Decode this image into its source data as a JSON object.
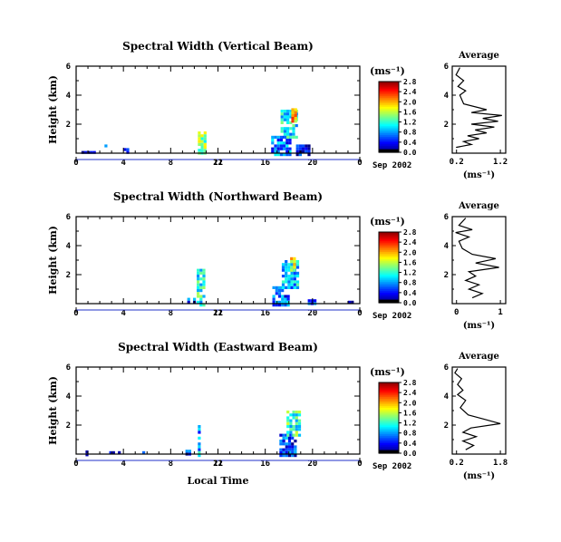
{
  "chart_data": [
    {
      "type": "heatmap",
      "title": "Spectral Width (Vertical Beam)",
      "xlabel": "",
      "ylabel": "Height (km)",
      "xlim": [
        0,
        24
      ],
      "ylim": [
        0,
        6
      ],
      "x_ticks": [
        "0",
        "4",
        "8",
        "12",
        "16",
        "20",
        "0"
      ],
      "y_ticks": [
        "2",
        "4",
        "6"
      ],
      "colorbar": {
        "unit": "(ms⁻¹)",
        "ticks": [
          "0.0",
          "0.4",
          "0.8",
          "1.2",
          "1.6",
          "2.0",
          "2.4",
          "2.8"
        ],
        "max": 2.8
      },
      "date_label": "21",
      "date_right": "Sep 2002",
      "echo_regions": [
        {
          "x": [
            0.2,
            1.5
          ],
          "y": [
            0.0,
            0.15
          ],
          "v": 0.2
        },
        {
          "x": [
            2.4,
            2.6
          ],
          "y": [
            0.5,
            0.6
          ],
          "v": 0.5
        },
        {
          "x": [
            4.0,
            4.3
          ],
          "y": [
            0.0,
            0.35
          ],
          "v": 0.4
        },
        {
          "x": [
            10.3,
            10.9
          ],
          "y": [
            0.0,
            1.5
          ],
          "v": 1.4
        },
        {
          "x": [
            16.5,
            18.0
          ],
          "y": [
            0.0,
            1.2
          ],
          "v": 0.7
        },
        {
          "x": [
            17.3,
            18.6
          ],
          "y": [
            1.2,
            3.0
          ],
          "v": 1.0
        },
        {
          "x": [
            18.2,
            18.6
          ],
          "y": [
            2.2,
            3.1
          ],
          "v": 1.9
        },
        {
          "x": [
            18.6,
            19.6
          ],
          "y": [
            0.0,
            0.6
          ],
          "v": 0.3
        }
      ],
      "average": {
        "title": "Average",
        "xlabel": "(ms⁻¹)",
        "x_ticks": [
          "0.2",
          "1.2"
        ],
        "xlim": [
          0,
          1.4
        ],
        "ylim": [
          0,
          6
        ],
        "y_ticks": [
          "2",
          "4",
          "6"
        ],
        "profile": [
          [
            0.1,
            0.4
          ],
          [
            0.5,
            0.6
          ],
          [
            0.3,
            0.8
          ],
          [
            0.7,
            1.0
          ],
          [
            0.4,
            1.2
          ],
          [
            0.9,
            1.4
          ],
          [
            0.6,
            1.6
          ],
          [
            1.1,
            1.8
          ],
          [
            0.5,
            2.0
          ],
          [
            1.2,
            2.2
          ],
          [
            0.8,
            2.4
          ],
          [
            1.3,
            2.6
          ],
          [
            0.5,
            2.8
          ],
          [
            0.9,
            3.0
          ],
          [
            0.3,
            3.4
          ],
          [
            0.2,
            4.0
          ],
          [
            0.35,
            4.3
          ],
          [
            0.15,
            4.6
          ],
          [
            0.3,
            5.0
          ],
          [
            0.1,
            5.4
          ],
          [
            0.2,
            5.9
          ]
        ]
      }
    },
    {
      "type": "heatmap",
      "title": "Spectral Width (Northward Beam)",
      "xlabel": "",
      "ylabel": "Height (km)",
      "xlim": [
        0,
        24
      ],
      "ylim": [
        0,
        6
      ],
      "x_ticks": [
        "0",
        "4",
        "8",
        "12",
        "16",
        "20",
        "0"
      ],
      "y_ticks": [
        "2",
        "4",
        "6"
      ],
      "colorbar": {
        "unit": "(ms⁻¹)",
        "ticks": [
          "0.0",
          "0.4",
          "0.8",
          "1.2",
          "1.6",
          "2.0",
          "2.4",
          "2.8"
        ],
        "max": 2.8
      },
      "date_label": "21",
      "date_right": "Sep 2002",
      "echo_regions": [
        {
          "x": [
            9.4,
            10.0
          ],
          "y": [
            0.0,
            0.4
          ],
          "v": 0.5
        },
        {
          "x": [
            10.2,
            10.9
          ],
          "y": [
            0.0,
            2.4
          ],
          "v": 1.1
        },
        {
          "x": [
            16.6,
            18.0
          ],
          "y": [
            0.0,
            1.2
          ],
          "v": 0.6
        },
        {
          "x": [
            17.4,
            18.7
          ],
          "y": [
            1.2,
            3.0
          ],
          "v": 0.9
        },
        {
          "x": [
            18.1,
            18.5
          ],
          "y": [
            2.4,
            3.2
          ],
          "v": 1.7
        },
        {
          "x": [
            19.6,
            20.2
          ],
          "y": [
            0.0,
            0.3
          ],
          "v": 0.4
        },
        {
          "x": [
            23.0,
            23.4
          ],
          "y": [
            0.0,
            0.2
          ],
          "v": 0.3
        }
      ],
      "average": {
        "title": "Average",
        "xlabel": "(ms⁻¹)",
        "x_ticks": [
          "0",
          "1"
        ],
        "xlim": [
          0,
          1.6
        ],
        "ylim": [
          0,
          6
        ],
        "y_ticks": [
          "2",
          "4",
          "6"
        ],
        "profile": [
          [
            0.6,
            0.4
          ],
          [
            0.9,
            0.7
          ],
          [
            0.5,
            1.0
          ],
          [
            0.8,
            1.3
          ],
          [
            0.4,
            1.6
          ],
          [
            0.7,
            1.9
          ],
          [
            0.5,
            2.2
          ],
          [
            1.4,
            2.5
          ],
          [
            0.7,
            2.8
          ],
          [
            1.3,
            3.1
          ],
          [
            0.6,
            3.4
          ],
          [
            0.3,
            3.8
          ],
          [
            0.2,
            4.3
          ],
          [
            0.5,
            4.6
          ],
          [
            0.1,
            4.9
          ],
          [
            0.6,
            5.1
          ],
          [
            0.2,
            5.4
          ],
          [
            0.4,
            5.9
          ]
        ]
      }
    },
    {
      "type": "heatmap",
      "title": "Spectral Width (Eastward Beam)",
      "xlabel": "Local Time",
      "ylabel": "Height (km)",
      "xlim": [
        0,
        24
      ],
      "ylim": [
        0,
        6
      ],
      "x_ticks": [
        "0",
        "4",
        "8",
        "12",
        "16",
        "20",
        "0"
      ],
      "y_ticks": [
        "2",
        "4",
        "6"
      ],
      "colorbar": {
        "unit": "(ms⁻¹)",
        "ticks": [
          "0.0",
          "0.4",
          "0.8",
          "1.2",
          "1.6",
          "2.0",
          "2.4",
          "2.8"
        ],
        "max": 2.8
      },
      "date_label": "21",
      "date_right": "Sep 2002",
      "echo_regions": [
        {
          "x": [
            0.8,
            1.0
          ],
          "y": [
            0.0,
            0.25
          ],
          "v": 0.5
        },
        {
          "x": [
            2.8,
            3.6
          ],
          "y": [
            0.0,
            0.2
          ],
          "v": 0.3
        },
        {
          "x": [
            5.6,
            5.8
          ],
          "y": [
            0.0,
            0.2
          ],
          "v": 0.4
        },
        {
          "x": [
            9.0,
            9.6
          ],
          "y": [
            0.0,
            0.3
          ],
          "v": 0.4
        },
        {
          "x": [
            10.3,
            10.5
          ],
          "y": [
            0.0,
            2.0
          ],
          "v": 0.8
        },
        {
          "x": [
            10.6,
            10.7
          ],
          "y": [
            5.4,
            5.5
          ],
          "v": 0.4
        },
        {
          "x": [
            17.2,
            18.6
          ],
          "y": [
            0.0,
            1.4
          ],
          "v": 0.5
        },
        {
          "x": [
            17.8,
            18.8
          ],
          "y": [
            1.4,
            3.0
          ],
          "v": 1.2
        }
      ],
      "average": {
        "title": "Average",
        "xlabel": "(ms⁻¹)",
        "x_ticks": [
          "0.2",
          "1.8"
        ],
        "xlim": [
          0,
          2.0
        ],
        "ylim": [
          0,
          6
        ],
        "y_ticks": [
          "2",
          "4",
          "6"
        ],
        "profile": [
          [
            0.5,
            0.3
          ],
          [
            0.8,
            0.6
          ],
          [
            0.4,
            0.9
          ],
          [
            0.9,
            1.2
          ],
          [
            0.4,
            1.5
          ],
          [
            0.7,
            1.8
          ],
          [
            1.8,
            2.1
          ],
          [
            1.2,
            2.4
          ],
          [
            0.6,
            2.7
          ],
          [
            0.3,
            3.2
          ],
          [
            0.5,
            3.7
          ],
          [
            0.2,
            4.1
          ],
          [
            0.4,
            4.4
          ],
          [
            0.2,
            4.8
          ],
          [
            0.35,
            5.2
          ],
          [
            0.1,
            5.6
          ],
          [
            0.2,
            5.9
          ]
        ]
      }
    }
  ]
}
